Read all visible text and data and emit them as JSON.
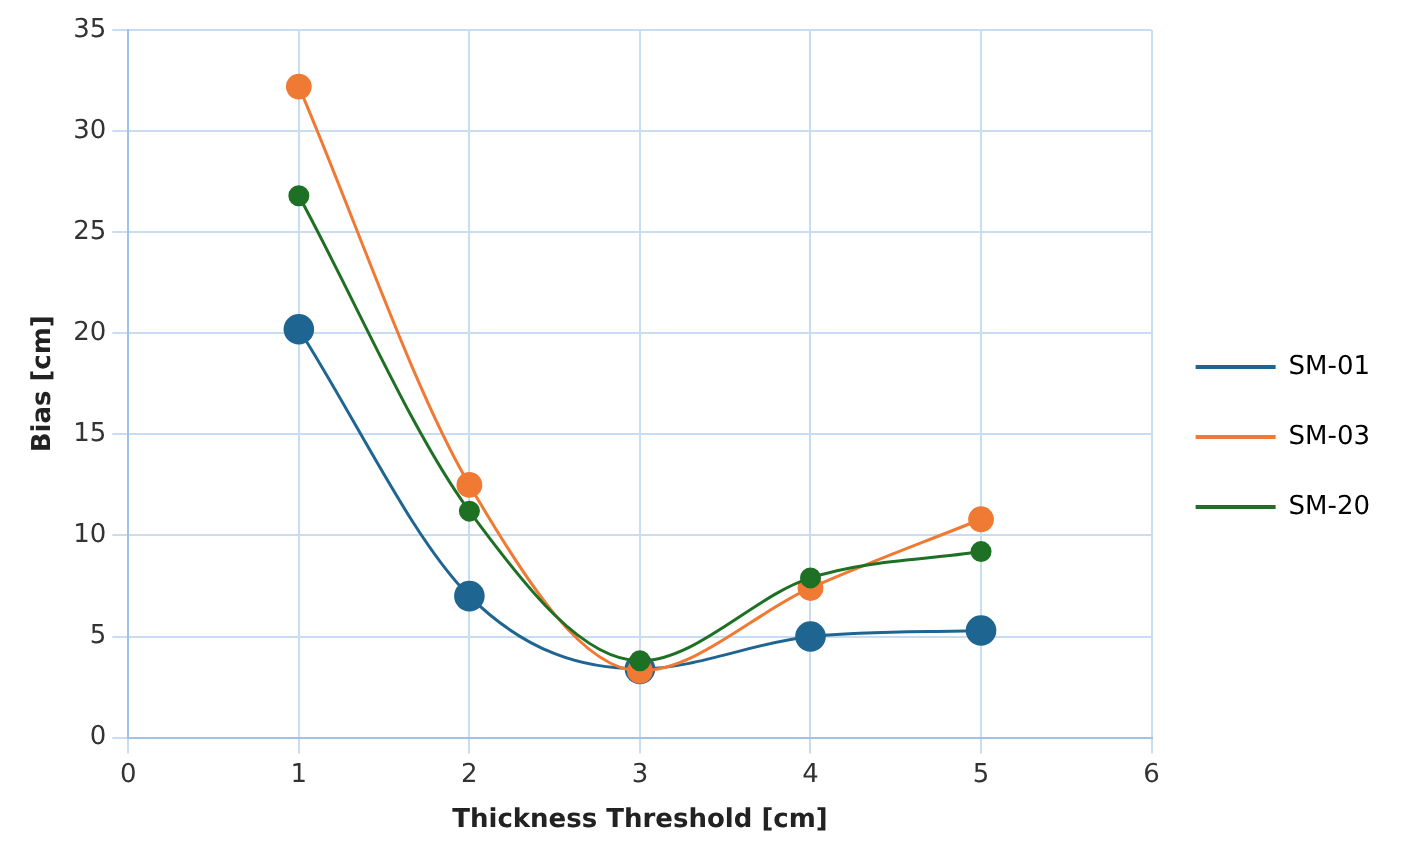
{
  "chart_data": {
    "type": "line",
    "xlabel": "Thickness Threshold [cm]",
    "ylabel": "Bias [cm]",
    "x": [
      1,
      2,
      3,
      4,
      5
    ],
    "series": [
      {
        "name": "SM-01",
        "color": "#1f6591",
        "values": [
          20.2,
          7.0,
          3.4,
          5.0,
          5.3
        ]
      },
      {
        "name": "SM-03",
        "color": "#f07a34",
        "values": [
          32.2,
          12.5,
          3.3,
          7.4,
          10.8
        ]
      },
      {
        "name": "SM-20",
        "color": "#1e7024",
        "values": [
          26.8,
          11.2,
          3.8,
          7.9,
          9.2
        ]
      }
    ],
    "xlim": [
      0,
      6
    ],
    "xticks": [
      0,
      1,
      2,
      3,
      4,
      5,
      6
    ],
    "ylim": [
      0,
      35
    ],
    "yticks": [
      0,
      5,
      10,
      15,
      20,
      25,
      30,
      35
    ],
    "grid": true,
    "legend": "right",
    "marker": "circle",
    "line_style": "solid"
  }
}
